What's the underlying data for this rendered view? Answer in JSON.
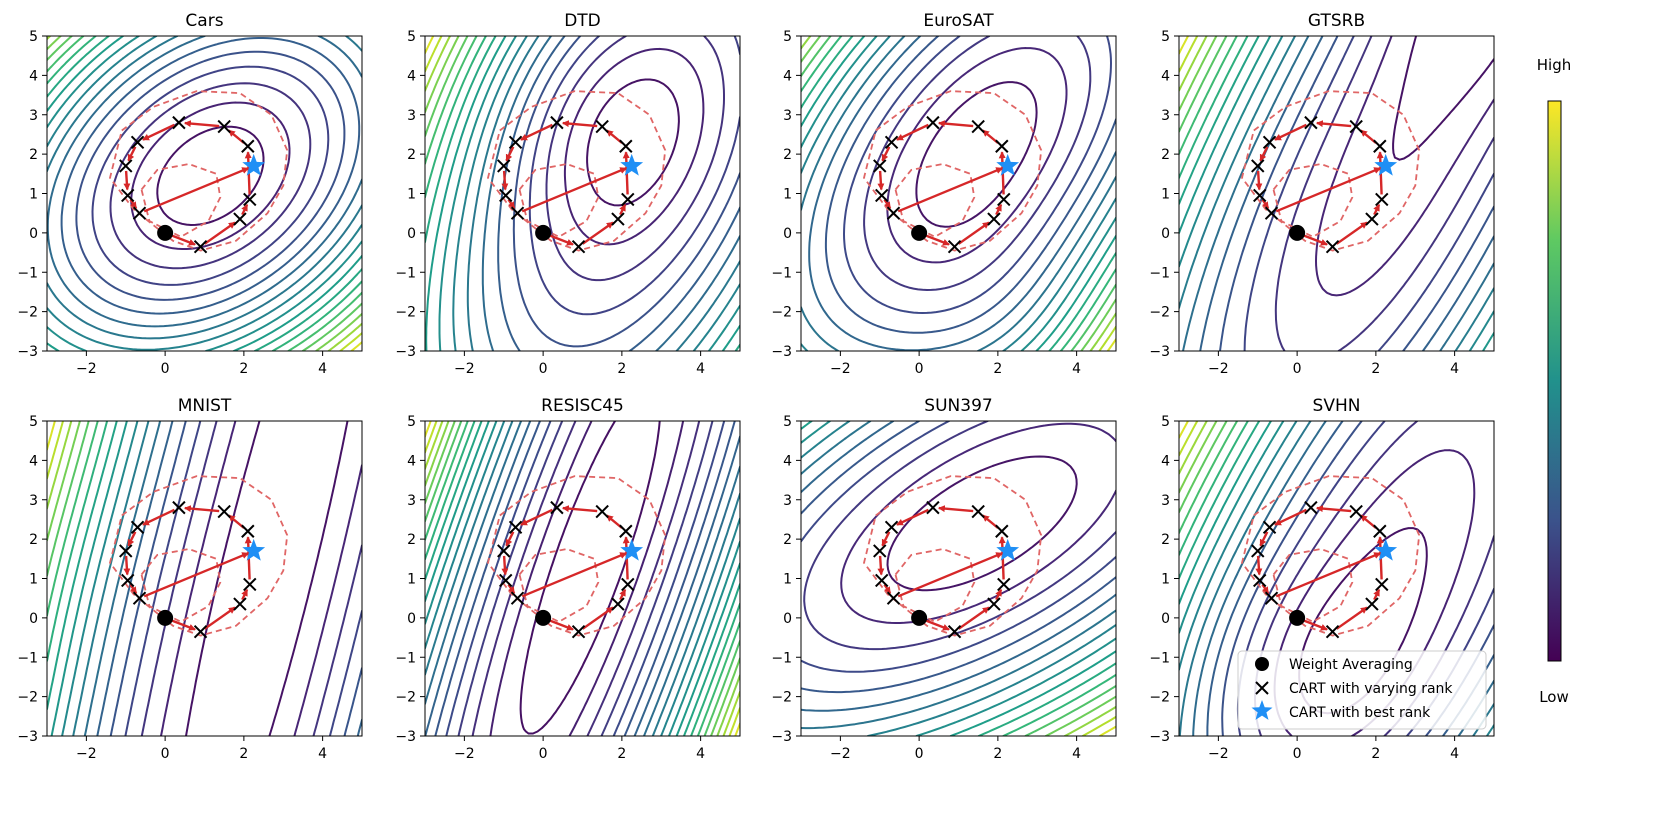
{
  "figure": {
    "colorbar": {
      "high_label": "High",
      "low_label": "Low"
    },
    "legend": {
      "weight_averaging": "Weight Averaging",
      "cart_varying": "CART with varying rank",
      "cart_best": "CART with best rank"
    },
    "colors": {
      "path": "#d62728",
      "dashed": "#e06666",
      "star": "#1f8ff5",
      "marker": "#000000",
      "viridis_high": "#fde725",
      "viridis_low": "#440154"
    }
  },
  "chart_data": [
    {
      "type": "contour",
      "title": "Cars",
      "xlim": [
        -3,
        5
      ],
      "ylim": [
        -3,
        5
      ],
      "xticks": [
        -2,
        0,
        2,
        4
      ],
      "yticks": [
        -3,
        -2,
        -1,
        0,
        1,
        2,
        3,
        4,
        5
      ]
    },
    {
      "type": "contour",
      "title": "DTD",
      "xlim": [
        -3,
        5
      ],
      "ylim": [
        -3,
        5
      ],
      "xticks": [
        -2,
        0,
        2,
        4
      ],
      "yticks": [
        -3,
        -2,
        -1,
        0,
        1,
        2,
        3,
        4,
        5
      ]
    },
    {
      "type": "contour",
      "title": "EuroSAT",
      "xlim": [
        -3,
        5
      ],
      "ylim": [
        -3,
        5
      ],
      "xticks": [
        -2,
        0,
        2,
        4
      ],
      "yticks": [
        -3,
        -2,
        -1,
        0,
        1,
        2,
        3,
        4,
        5
      ]
    },
    {
      "type": "contour",
      "title": "GTSRB",
      "xlim": [
        -3,
        5
      ],
      "ylim": [
        -3,
        5
      ],
      "xticks": [
        -2,
        0,
        2,
        4
      ],
      "yticks": [
        -3,
        -2,
        -1,
        0,
        1,
        2,
        3,
        4,
        5
      ]
    },
    {
      "type": "contour",
      "title": "MNIST",
      "xlim": [
        -3,
        5
      ],
      "ylim": [
        -3,
        5
      ],
      "xticks": [
        -2,
        0,
        2,
        4
      ],
      "yticks": [
        -3,
        -2,
        -1,
        0,
        1,
        2,
        3,
        4,
        5
      ]
    },
    {
      "type": "contour",
      "title": "RESISC45",
      "xlim": [
        -3,
        5
      ],
      "ylim": [
        -3,
        5
      ],
      "xticks": [
        -2,
        0,
        2,
        4
      ],
      "yticks": [
        -3,
        -2,
        -1,
        0,
        1,
        2,
        3,
        4,
        5
      ]
    },
    {
      "type": "contour",
      "title": "SUN397",
      "xlim": [
        -3,
        5
      ],
      "ylim": [
        -3,
        5
      ],
      "xticks": [
        -2,
        0,
        2,
        4
      ],
      "yticks": [
        -3,
        -2,
        -1,
        0,
        1,
        2,
        3,
        4,
        5
      ]
    },
    {
      "type": "contour",
      "title": "SVHN",
      "xlim": [
        -3,
        5
      ],
      "ylim": [
        -3,
        5
      ],
      "xticks": [
        -2,
        0,
        2,
        4
      ],
      "yticks": [
        -3,
        -2,
        -1,
        0,
        1,
        2,
        3,
        4,
        5
      ]
    }
  ],
  "trajectory": {
    "weight_averaging": [
      0,
      0
    ],
    "cart_varying": [
      [
        0.9,
        -0.35
      ],
      [
        1.9,
        0.35
      ],
      [
        2.15,
        0.85
      ],
      [
        2.1,
        2.2
      ],
      [
        1.5,
        2.7
      ],
      [
        0.35,
        2.8
      ],
      [
        -0.7,
        2.3
      ],
      [
        -1.0,
        1.7
      ],
      [
        -0.95,
        0.95
      ],
      [
        -0.65,
        0.5
      ]
    ],
    "cart_best": [
      2.25,
      1.7
    ]
  }
}
